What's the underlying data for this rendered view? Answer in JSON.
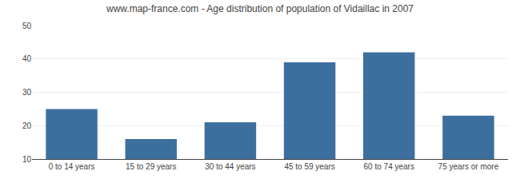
{
  "chart_data": {
    "type": "bar",
    "title": "www.map-france.com - Age distribution of population of Vidaillac in 2007",
    "categories": [
      "0 to 14 years",
      "15 to 29 years",
      "30 to 44 years",
      "45 to 59 years",
      "60 to 74 years",
      "75 years or more"
    ],
    "values": [
      25,
      16,
      21,
      39,
      42,
      23
    ],
    "color": "#3d6f9e",
    "ylim": [
      10,
      50
    ],
    "yticks": [
      10,
      20,
      30,
      40,
      50
    ],
    "grid": true
  }
}
